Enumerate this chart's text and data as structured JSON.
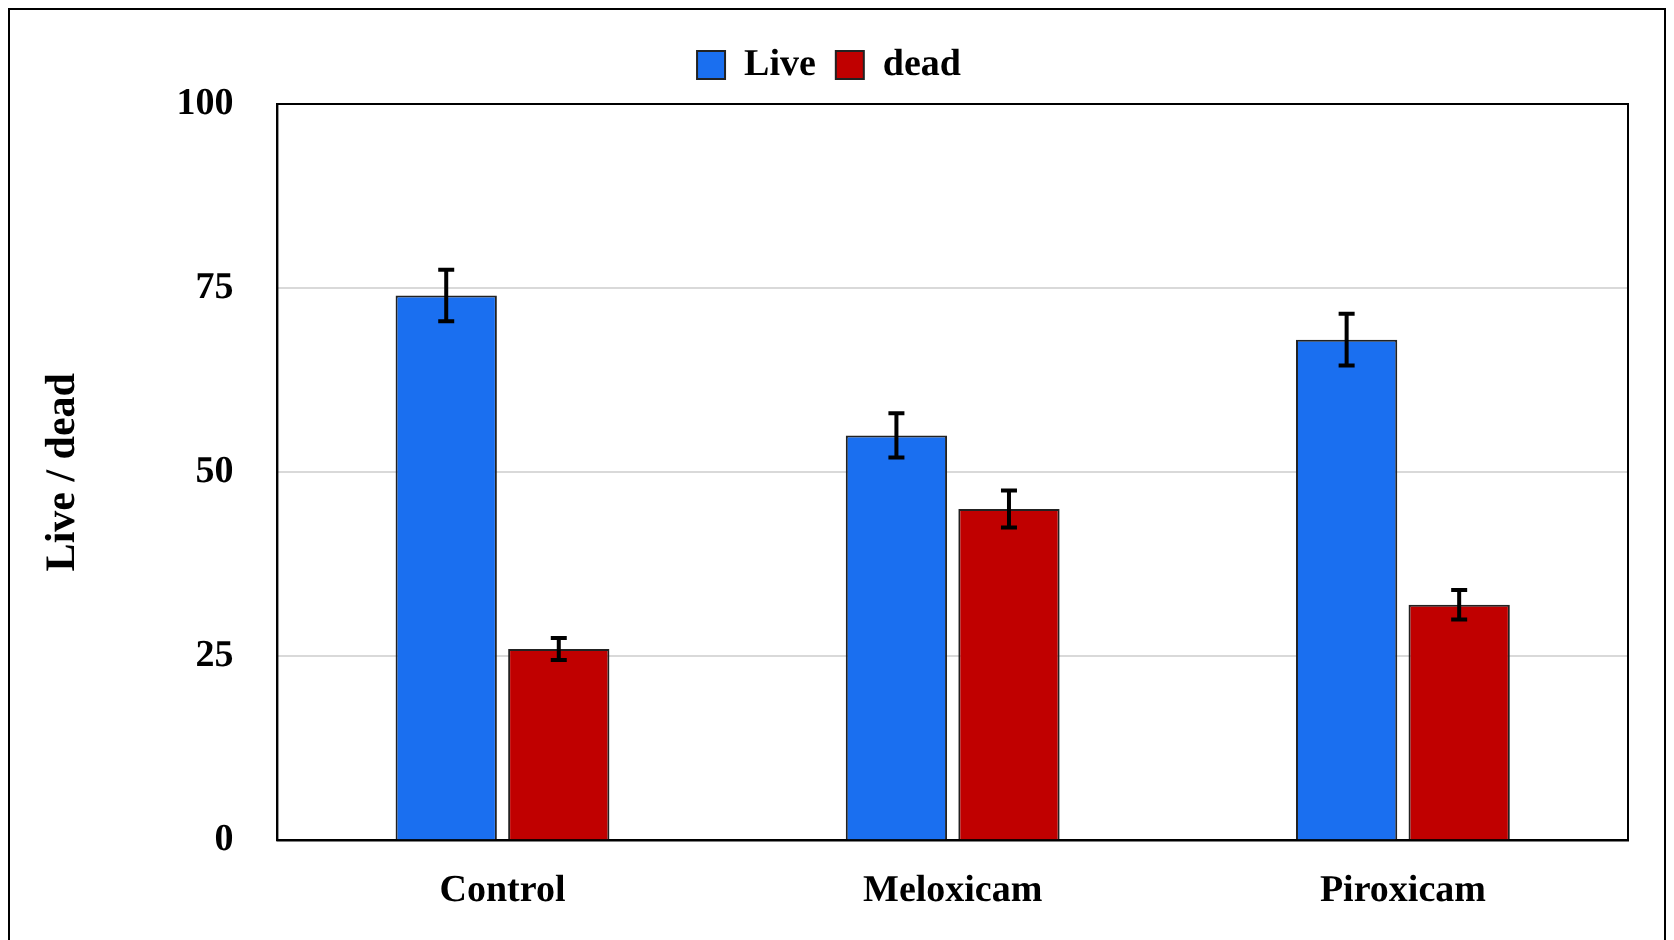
{
  "chart_data": {
    "type": "bar",
    "ylabel": "Live / dead",
    "categories": [
      "Control",
      "Meloxicam",
      "Piroxicam"
    ],
    "series": [
      {
        "name": "Live",
        "color": "#1a6ff0",
        "values": [
          74,
          55,
          68
        ],
        "errors": [
          3.5,
          3,
          3.5
        ]
      },
      {
        "name": "dead",
        "color": "#c00000",
        "values": [
          26,
          45,
          32
        ],
        "errors": [
          1.5,
          2.5,
          2
        ]
      }
    ],
    "ylim": [
      0,
      100
    ],
    "yticks": [
      0,
      25,
      50,
      75,
      100
    ],
    "grid": "y",
    "legend": "top"
  }
}
